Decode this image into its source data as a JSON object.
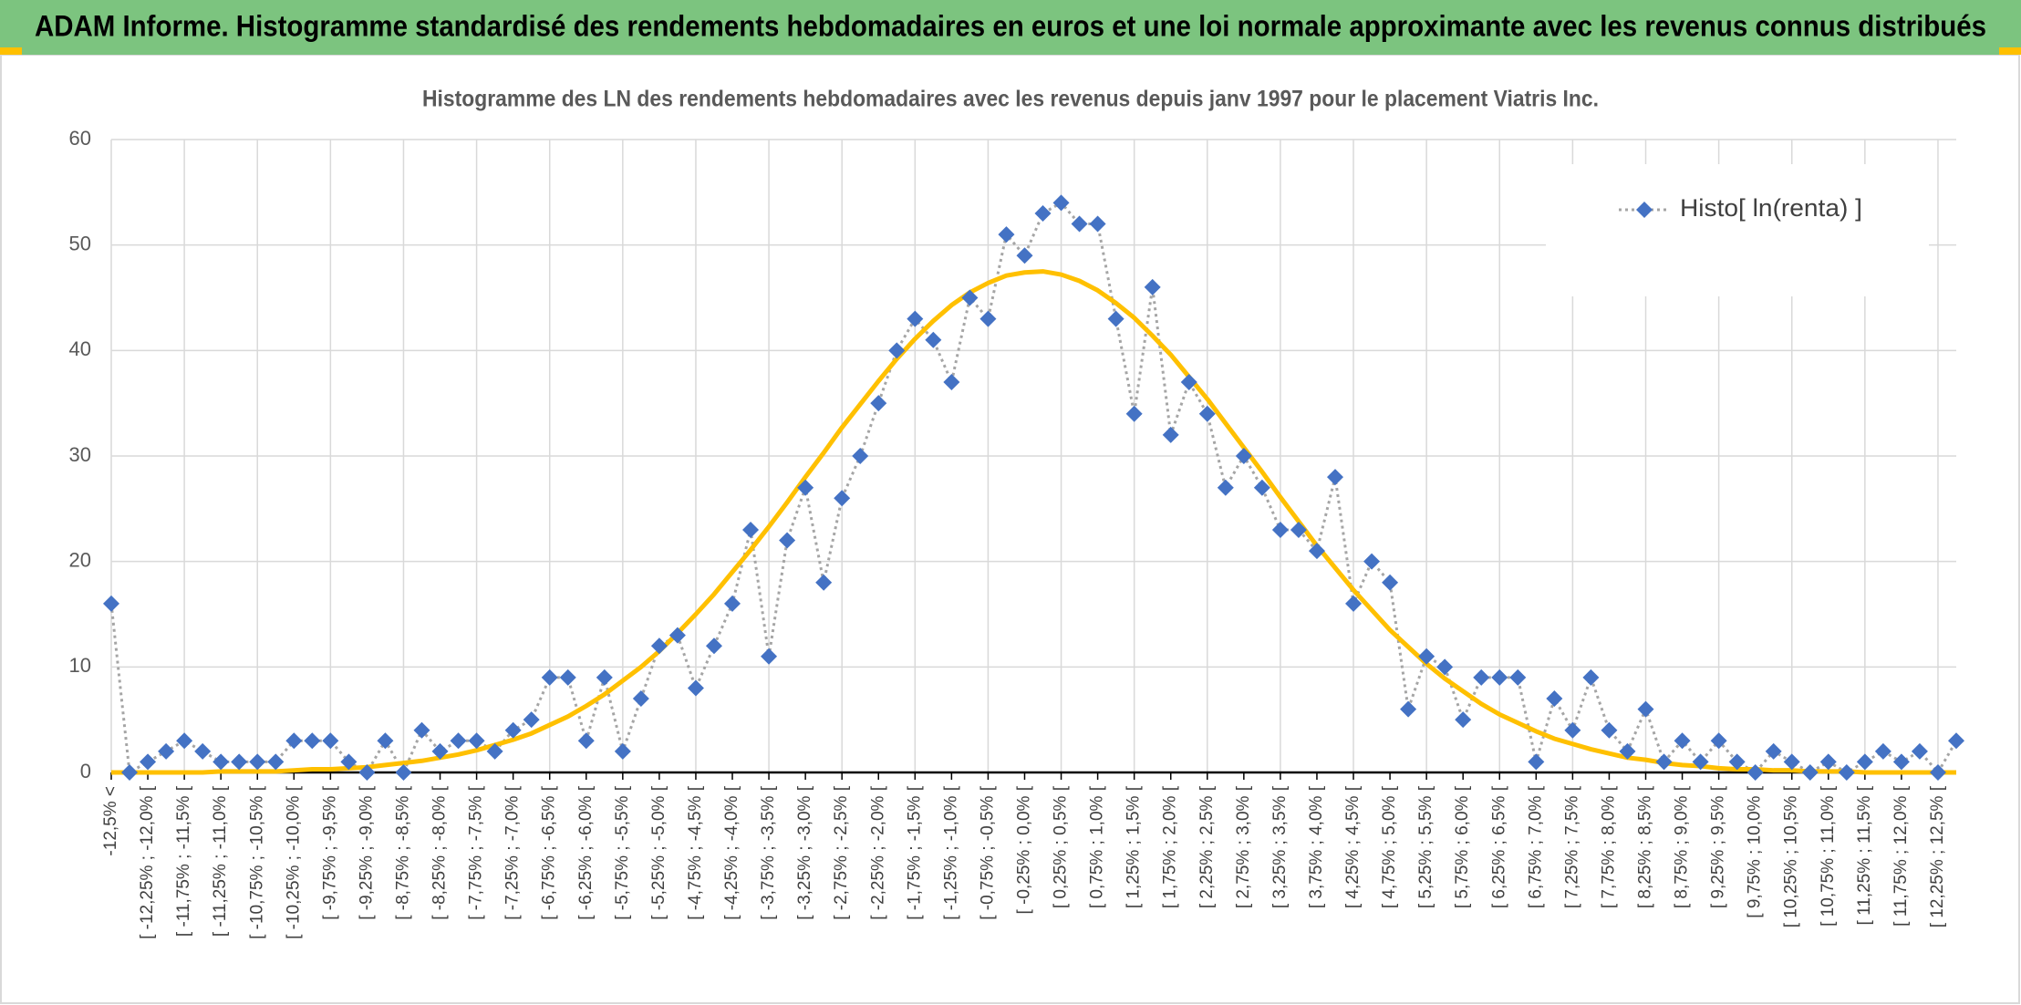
{
  "header": {
    "title": "ADAM Informe. Histogramme standardisé des rendements hebdomadaires en euros et une loi normale approximante avec les revenus connus distribués"
  },
  "chart_data": {
    "type": "line",
    "title": "Histogramme des LN des rendements hebdomadaires avec les revenus depuis janv 1997 pour le placement Viatris Inc.",
    "categories": [
      "-12,5% <",
      null,
      "[ -12,25% ; -12,0% [",
      null,
      "[ -11,75% ; -11,5% [",
      null,
      "[ -11,25% ; -11,0% [",
      null,
      "[ -10,75% ; -10,5% [",
      null,
      "[ -10,25% ; -10,0% [",
      null,
      "[ -9,75% ; -9,5% [",
      null,
      "[ -9,25% ; -9,0% [",
      null,
      "[ -8,75% ; -8,5% [",
      null,
      "[ -8,25% ; -8,0% [",
      null,
      "[ -7,75% ; -7,5% [",
      null,
      "[ -7,25% ; -7,0% [",
      null,
      "[ -6,75% ; -6,5% [",
      null,
      "[ -6,25% ; -6,0% [",
      null,
      "[ -5,75% ; -5,5% [",
      null,
      "[ -5,25% ; -5,0% [",
      null,
      "[ -4,75% ; -4,5% [",
      null,
      "[ -4,25% ; -4,0% [",
      null,
      "[ -3,75% ; -3,5% [",
      null,
      "[ -3,25% ; -3,0% [",
      null,
      "[ -2,75% ; -2,5% [",
      null,
      "[ -2,25% ; -2,0% [",
      null,
      "[ -1,75% ; -1,5% [",
      null,
      "[ -1,25% ; -1,0% [",
      null,
      "[ -0,75% ; -0,5% [",
      null,
      "[ -0,25% ; 0,0% [",
      null,
      "[ 0,25% ; 0,5% [",
      null,
      "[ 0,75% ; 1,0% [",
      null,
      "[ 1,25% ; 1,5% [",
      null,
      "[ 1,75% ; 2,0% [",
      null,
      "[ 2,25% ; 2,5% [",
      null,
      "[ 2,75% ; 3,0% [",
      null,
      "[ 3,25% ; 3,5% [",
      null,
      "[ 3,75% ; 4,0% [",
      null,
      "[ 4,25% ; 4,5% [",
      null,
      "[ 4,75% ; 5,0% [",
      null,
      "[ 5,25% ; 5,5% [",
      null,
      "[ 5,75% ; 6,0% [",
      null,
      "[ 6,25% ; 6,5% [",
      null,
      "[ 6,75% ; 7,0% [",
      null,
      "[ 7,25% ; 7,5% [",
      null,
      "[ 7,75% ; 8,0% [",
      null,
      "[ 8,25% ; 8,5% [",
      null,
      "[ 8,75% ; 9,0% [",
      null,
      "[ 9,25% ; 9,5% [",
      null,
      "[ 9,75% ; 10,0% [",
      null,
      "[ 10,25% ; 10,5% [",
      null,
      "[ 10,75% ; 11,0% [",
      null,
      "[ 11,25% ; 11,5% [",
      null,
      "[ 11,75% ; 12,0% [",
      null,
      "[ 12,25% ; 12,5% [",
      null
    ],
    "series": [
      {
        "name": "Histo[ ln(renta) ]",
        "color": "#4472c4",
        "line_color": "#a5a5a5",
        "values": [
          16,
          0,
          1,
          2,
          3,
          2,
          1,
          1,
          1,
          1,
          3,
          3,
          3,
          1,
          0,
          3,
          0,
          4,
          2,
          3,
          3,
          2,
          4,
          5,
          9,
          9,
          3,
          9,
          2,
          7,
          12,
          13,
          8,
          12,
          16,
          23,
          11,
          22,
          27,
          18,
          26,
          30,
          35,
          40,
          43,
          41,
          37,
          45,
          43,
          51,
          49,
          53,
          54,
          52,
          52,
          43,
          34,
          46,
          32,
          37,
          34,
          27,
          30,
          27,
          23,
          23,
          21,
          28,
          16,
          20,
          18,
          6,
          11,
          10,
          5,
          9,
          9,
          9,
          1,
          7,
          4,
          9,
          4,
          2,
          6,
          1,
          3,
          1,
          3,
          1,
          0,
          2,
          1,
          0,
          1,
          0,
          1,
          2,
          1,
          2,
          0,
          3
        ]
      },
      {
        "color": "#ffc000",
        "values": [
          0,
          0,
          0,
          0,
          0,
          0,
          0.1,
          0.1,
          0.1,
          0.1,
          0.2,
          0.3,
          0.3,
          0.4,
          0.5,
          0.7,
          0.9,
          1.1,
          1.4,
          1.7,
          2.1,
          2.6,
          3.1,
          3.7,
          4.5,
          5.3,
          6.3,
          7.4,
          8.7,
          10,
          11.5,
          13.2,
          15,
          16.9,
          19,
          21.1,
          23.3,
          25.6,
          28,
          30.3,
          32.7,
          34.9,
          37.1,
          39.2,
          41.1,
          42.8,
          44.3,
          45.5,
          46.4,
          47.1,
          47.4,
          47.5,
          47.2,
          46.6,
          45.7,
          44.5,
          43.1,
          41.4,
          39.6,
          37.5,
          35.4,
          33.1,
          30.8,
          28.5,
          26.1,
          23.8,
          21.5,
          19.4,
          17.3,
          15.4,
          13.5,
          11.9,
          10.3,
          8.9,
          7.7,
          6.5,
          5.5,
          4.7,
          3.9,
          3.2,
          2.7,
          2.2,
          1.8,
          1.4,
          1.2,
          0.9,
          0.7,
          0.6,
          0.4,
          0.3,
          0.3,
          0.2,
          0.2,
          0.1,
          0.1,
          0.1,
          0,
          0,
          0,
          0,
          0,
          0
        ]
      }
    ],
    "ylim": [
      0,
      60
    ],
    "yticks": [
      0,
      10,
      20,
      30,
      40,
      50,
      60
    ],
    "grid": true,
    "legend": "upper right"
  }
}
